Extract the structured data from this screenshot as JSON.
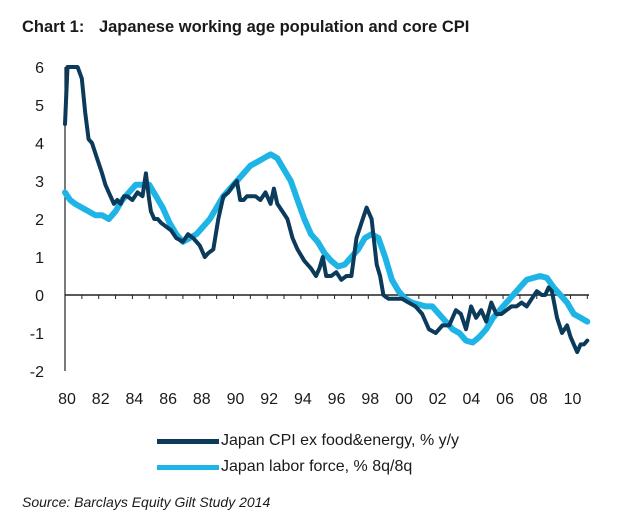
{
  "chart_data": {
    "type": "line",
    "title_number": "Chart 1:",
    "title": "Japanese working age population and core CPI",
    "source": "Source: Barclays Equity Gilt Study 2014",
    "xlabel": "",
    "ylabel": "",
    "xlim": [
      1980,
      2011.1
    ],
    "ylim": [
      -2,
      6
    ],
    "x_ticks": [
      1980,
      1982,
      1984,
      1986,
      1988,
      1990,
      1992,
      1994,
      1996,
      1998,
      2000,
      2002,
      2004,
      2006,
      2008,
      2010
    ],
    "x_tick_labels": [
      "80",
      "82",
      "84",
      "86",
      "88",
      "90",
      "92",
      "94",
      "96",
      "98",
      "00",
      "02",
      "04",
      "06",
      "08",
      "10"
    ],
    "y_ticks": [
      6,
      5,
      4,
      3,
      2,
      1,
      0,
      -1,
      -2
    ],
    "y_tick_labels": [
      "6",
      "5",
      "4",
      "3",
      "2",
      "1",
      "0",
      "-1",
      "-2"
    ],
    "series": [
      {
        "name": "Japan CPI ex food&energy, % y/y",
        "color": "#0c3a5a",
        "x": [
          1980.0,
          1980.15,
          1980.4,
          1980.75,
          1981.0,
          1981.2,
          1981.4,
          1981.6,
          1981.9,
          1982.2,
          1982.4,
          1982.6,
          1982.9,
          1983.1,
          1983.3,
          1983.5,
          1983.7,
          1984.0,
          1984.3,
          1984.6,
          1984.8,
          1985.0,
          1985.1,
          1985.3,
          1985.5,
          1985.7,
          1986.0,
          1986.3,
          1986.6,
          1987.0,
          1987.3,
          1987.6,
          1988.0,
          1988.3,
          1988.5,
          1988.8,
          1989.1,
          1989.4,
          1989.7,
          1990.0,
          1990.2,
          1990.4,
          1990.6,
          1990.8,
          1991.0,
          1991.3,
          1991.6,
          1991.9,
          1992.2,
          1992.4,
          1992.6,
          1992.9,
          1993.2,
          1993.5,
          1993.8,
          1994.2,
          1994.6,
          1994.9,
          1995.1,
          1995.3,
          1995.5,
          1995.8,
          1996.1,
          1996.4,
          1996.7,
          1997.0,
          1997.3,
          1997.6,
          1997.9,
          1998.2,
          1998.5,
          1998.7,
          1998.9,
          1999.2,
          1999.6,
          2000.0,
          2000.4,
          2000.8,
          2001.2,
          2001.6,
          2002.0,
          2002.4,
          2002.8,
          2003.2,
          2003.5,
          2003.8,
          2004.1,
          2004.4,
          2004.7,
          2005.0,
          2005.3,
          2005.6,
          2005.9,
          2006.2,
          2006.5,
          2006.8,
          2007.1,
          2007.4,
          2007.7,
          2008.0,
          2008.3,
          2008.5,
          2008.7,
          2008.9,
          2009.2,
          2009.5,
          2009.8,
          2010.0,
          2010.2,
          2010.4,
          2010.6,
          2010.8,
          2011.0
        ],
        "values": [
          4.5,
          6.0,
          6.0,
          6.0,
          5.7,
          4.8,
          4.1,
          4.0,
          3.6,
          3.2,
          2.9,
          2.7,
          2.4,
          2.5,
          2.4,
          2.6,
          2.6,
          2.5,
          2.7,
          2.6,
          3.2,
          2.5,
          2.2,
          2.0,
          2.0,
          1.9,
          1.8,
          1.7,
          1.5,
          1.4,
          1.6,
          1.5,
          1.3,
          1.0,
          1.1,
          1.2,
          2.0,
          2.6,
          2.7,
          2.9,
          3.0,
          2.5,
          2.5,
          2.6,
          2.6,
          2.6,
          2.5,
          2.7,
          2.4,
          2.8,
          2.4,
          2.2,
          2.0,
          1.5,
          1.2,
          0.9,
          0.7,
          0.5,
          0.7,
          1.0,
          0.5,
          0.5,
          0.6,
          0.4,
          0.5,
          0.5,
          1.5,
          1.9,
          2.3,
          2.0,
          0.8,
          0.5,
          0.0,
          -0.1,
          -0.1,
          -0.1,
          -0.2,
          -0.3,
          -0.5,
          -0.9,
          -1.0,
          -0.8,
          -0.8,
          -0.4,
          -0.5,
          -0.9,
          -0.3,
          -0.6,
          -0.4,
          -0.7,
          -0.2,
          -0.5,
          -0.5,
          -0.4,
          -0.3,
          -0.3,
          -0.2,
          -0.3,
          -0.1,
          0.1,
          0.0,
          0.0,
          0.2,
          0.1,
          -0.6,
          -1.0,
          -0.8,
          -1.1,
          -1.3,
          -1.5,
          -1.3,
          -1.3,
          -1.2
        ]
      },
      {
        "name": "Japan labor force, % 8q/8q",
        "color": "#1fb4e6",
        "x": [
          1980.0,
          1980.3,
          1980.6,
          1981.0,
          1981.4,
          1981.8,
          1982.2,
          1982.6,
          1983.0,
          1983.4,
          1983.8,
          1984.2,
          1984.6,
          1985.0,
          1985.4,
          1985.8,
          1986.2,
          1986.6,
          1987.0,
          1987.4,
          1987.8,
          1988.2,
          1988.6,
          1989.0,
          1989.4,
          1989.8,
          1990.2,
          1990.6,
          1991.0,
          1991.4,
          1991.8,
          1992.2,
          1992.6,
          1993.0,
          1993.4,
          1993.8,
          1994.2,
          1994.6,
          1995.0,
          1995.4,
          1995.8,
          1996.2,
          1996.6,
          1997.0,
          1997.4,
          1997.8,
          1998.2,
          1998.6,
          1999.0,
          1999.4,
          1999.8,
          2000.2,
          2000.6,
          2001.0,
          2001.4,
          2001.8,
          2002.2,
          2002.6,
          2003.0,
          2003.4,
          2003.8,
          2004.2,
          2004.6,
          2005.0,
          2005.4,
          2005.8,
          2006.2,
          2006.6,
          2007.0,
          2007.4,
          2007.8,
          2008.2,
          2008.6,
          2009.0,
          2009.4,
          2009.8,
          2010.2,
          2010.6,
          2011.0
        ],
        "values": [
          2.7,
          2.5,
          2.4,
          2.3,
          2.2,
          2.1,
          2.1,
          2.0,
          2.2,
          2.5,
          2.7,
          2.9,
          2.9,
          2.9,
          2.6,
          2.3,
          1.9,
          1.6,
          1.4,
          1.5,
          1.6,
          1.8,
          2.0,
          2.3,
          2.6,
          2.8,
          3.0,
          3.2,
          3.4,
          3.5,
          3.6,
          3.7,
          3.6,
          3.3,
          3.0,
          2.5,
          2.0,
          1.6,
          1.4,
          1.1,
          0.9,
          0.75,
          0.8,
          1.0,
          1.2,
          1.5,
          1.6,
          1.5,
          1.0,
          0.4,
          0.1,
          -0.1,
          -0.2,
          -0.25,
          -0.3,
          -0.3,
          -0.5,
          -0.7,
          -0.9,
          -1.0,
          -1.2,
          -1.25,
          -1.1,
          -0.9,
          -0.6,
          -0.4,
          -0.2,
          0.0,
          0.2,
          0.4,
          0.45,
          0.5,
          0.45,
          0.2,
          0.0,
          -0.2,
          -0.5,
          -0.6,
          -0.7
        ]
      }
    ]
  }
}
